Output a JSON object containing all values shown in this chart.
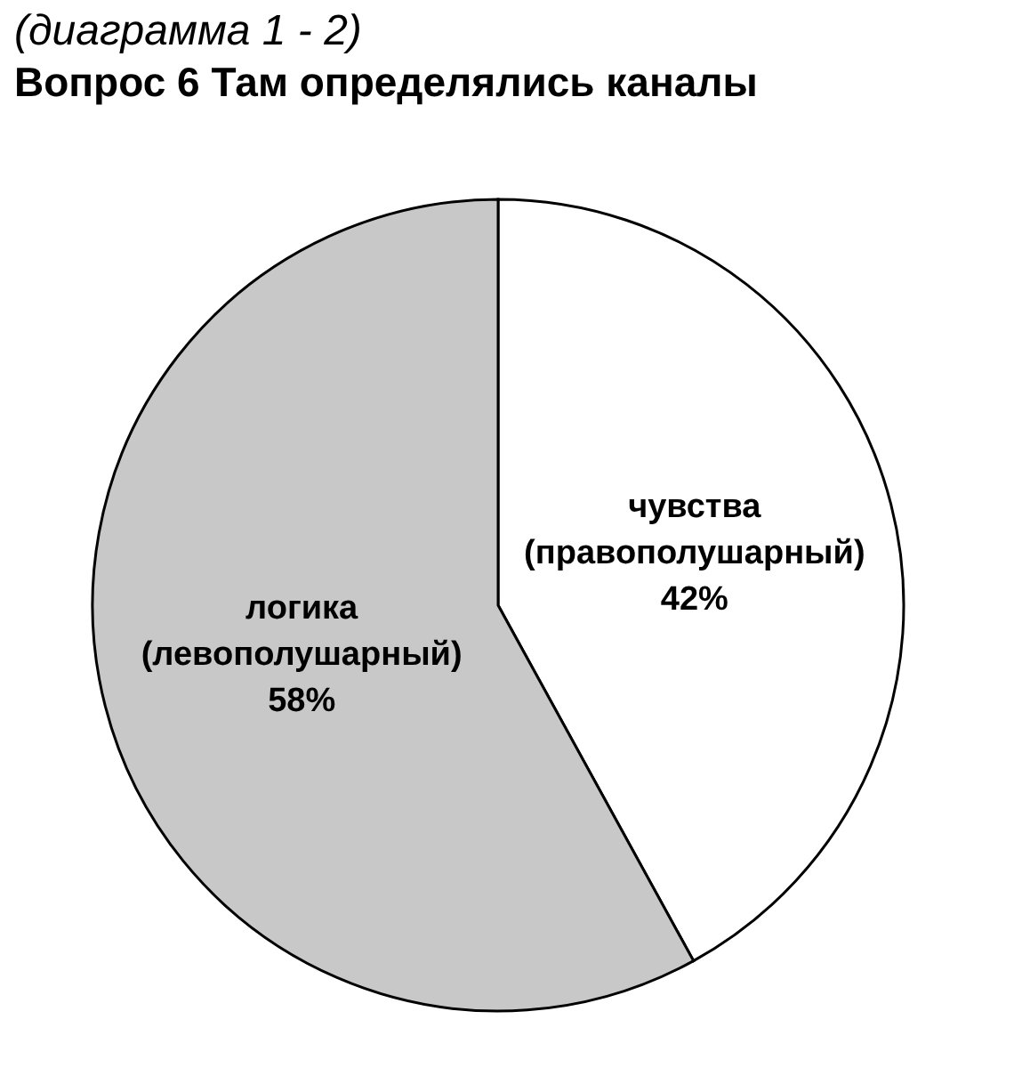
{
  "chart_data": {
    "type": "pie",
    "subtitle": "(диаграмма 1 - 2)",
    "title": "Вопрос 6 Там определялись каналы",
    "categories": [
      "чувства (правополушарный)",
      "логика (левополушарный)"
    ],
    "values": [
      42,
      58
    ],
    "colors": [
      "#ffffff",
      "#c8c8c8"
    ],
    "value_labels": [
      "42%",
      "58%"
    ],
    "legend": false
  }
}
